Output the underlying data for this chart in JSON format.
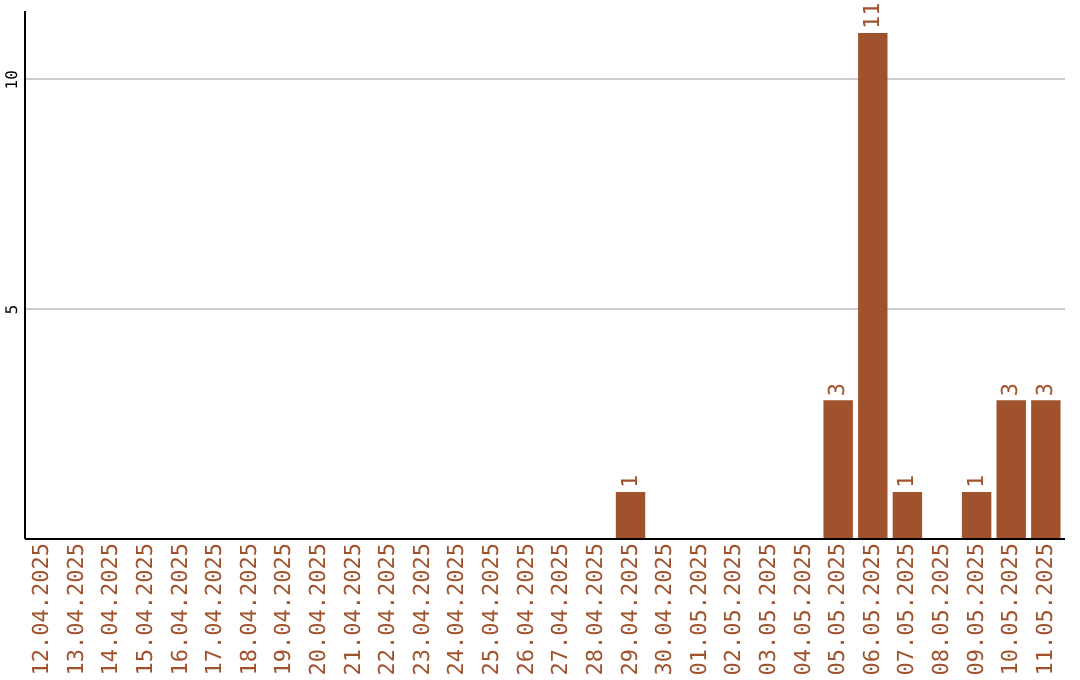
{
  "chart_data": {
    "type": "bar",
    "categories": [
      "12.04.2025",
      "13.04.2025",
      "14.04.2025",
      "15.04.2025",
      "16.04.2025",
      "17.04.2025",
      "18.04.2025",
      "19.04.2025",
      "20.04.2025",
      "21.04.2025",
      "22.04.2025",
      "23.04.2025",
      "24.04.2025",
      "25.04.2025",
      "26.04.2025",
      "27.04.2025",
      "28.04.2025",
      "29.04.2025",
      "30.04.2025",
      "01.05.2025",
      "02.05.2025",
      "03.05.2025",
      "04.05.2025",
      "05.05.2025",
      "06.05.2025",
      "07.05.2025",
      "08.05.2025",
      "09.05.2025",
      "10.05.2025",
      "11.05.2025"
    ],
    "values": [
      0,
      0,
      0,
      0,
      0,
      0,
      0,
      0,
      0,
      0,
      0,
      0,
      0,
      0,
      0,
      0,
      0,
      1,
      0,
      0,
      0,
      0,
      0,
      3,
      11,
      1,
      0,
      1,
      3,
      3
    ],
    "value_labels": [
      null,
      null,
      null,
      null,
      null,
      null,
      null,
      null,
      null,
      null,
      null,
      null,
      null,
      null,
      null,
      null,
      null,
      "1",
      null,
      null,
      null,
      null,
      null,
      "3",
      "11",
      "1",
      null,
      "1",
      "3",
      "3"
    ],
    "color": "#a0522d",
    "ylim": [
      0,
      11.5
    ],
    "yticks": [
      5,
      10
    ],
    "grid": "y"
  }
}
